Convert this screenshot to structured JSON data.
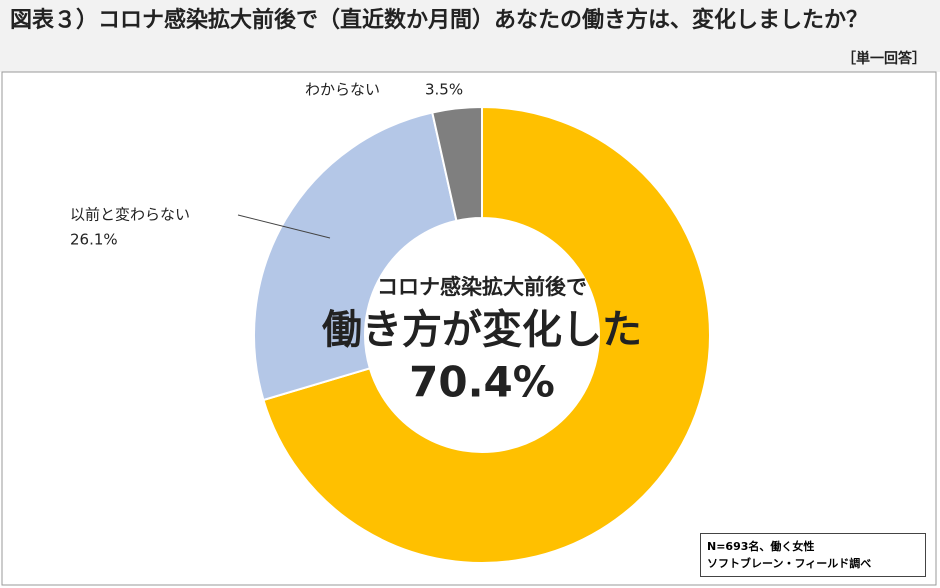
{
  "chart_data": {
    "type": "donut",
    "title": "図表３）コロナ感染拡大前後で（直近数か月間）あなたの働き方は、変化しましたか？",
    "subtitle": "［単一回答］",
    "center_caption": "コロナ感染拡大前後で",
    "categories": [
      "働き方が変化した",
      "以前と変わらない",
      "わからない"
    ],
    "values": [
      70.4,
      26.1,
      3.5
    ],
    "value_labels": [
      "70.4%",
      "26.1%",
      "3.5%"
    ],
    "colors": [
      "#FFC000",
      "#B4C7E7",
      "#7F7F7F"
    ],
    "notes": [
      "N=693名、働く女性",
      "ソフトブレーン・フィールド調べ"
    ]
  }
}
